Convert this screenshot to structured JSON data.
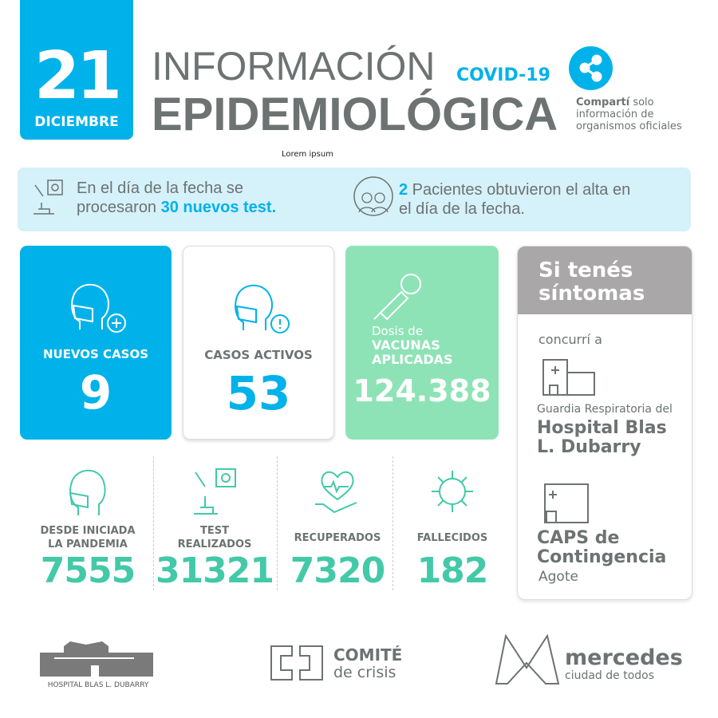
{
  "colors": {
    "blue": "#00b2e9",
    "grey": "#6d7272",
    "teal": "#43c9a8",
    "green": "#8ee3b6",
    "band": "#d5f1f9"
  },
  "date": {
    "day": "21",
    "month": "DICIEMBRE"
  },
  "header": {
    "line1": "INFORMACIÓN",
    "tag": "COVID-19",
    "line2": "EPIDEMIOLÓGICA",
    "share_icon": "share-icon",
    "share_bold": "Compartí",
    "share_rest": " solo",
    "share_line2": "información de",
    "share_line3": "organismos oficiales"
  },
  "lorem": "Lorem ipsum",
  "band": {
    "left_a": "En el día de la fecha se",
    "left_b": "procesaron ",
    "left_hl": "30 nuevos test.",
    "right_hl": "2",
    "right_a": " Pacientes obtuvieron el alta en",
    "right_b": "el día de la fecha."
  },
  "cards": [
    {
      "label": "NUEVOS CASOS",
      "value": "9",
      "icon": "masked-face-plus-icon"
    },
    {
      "label": "CASOS ACTIVOS",
      "value": "53",
      "icon": "masked-face-alert-icon"
    },
    {
      "label_a": "Dosis de",
      "label_b": "VACUNAS",
      "label_c": "APLICADAS",
      "value": "124.388",
      "icon": "syringe-virus-icon"
    }
  ],
  "panel": {
    "title_a": "Si tenés",
    "title_b": "síntomas",
    "go": "concurrí a",
    "place1_a": "Guardia Respiratoria del",
    "place1_b": "Hospital Blas",
    "place1_c": "L. Dubarry",
    "place2_a": "CAPS de",
    "place2_b": "Contingencia",
    "place2_c": "Agote"
  },
  "stats": [
    {
      "label_a": "DESDE INICIADA",
      "label_b": "LA PANDEMIA",
      "value": "7555",
      "icon": "masked-face-icon"
    },
    {
      "label_a": "TEST",
      "label_b": "REALIZADOS",
      "value": "31321",
      "icon": "microscope-icon"
    },
    {
      "label_a": "RECUPERADOS",
      "label_b": "",
      "value": "7320",
      "icon": "heart-hand-icon"
    },
    {
      "label_a": "FALLECIDOS",
      "label_b": "",
      "value": "182",
      "icon": "virus-icon"
    }
  ],
  "footer": {
    "hospital": "HOSPITAL BLAS L. DUBARRY",
    "comite_a": "COMITÉ",
    "comite_b": "de crisis",
    "mercedes_a": "mercedes",
    "mercedes_b": "ciudad de todos"
  }
}
